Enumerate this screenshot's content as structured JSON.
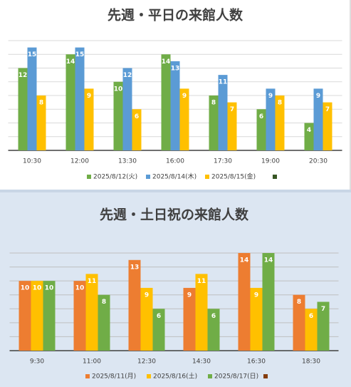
{
  "chart_data": [
    {
      "type": "bar",
      "title": "先週・平日の来館人数",
      "categories": [
        "10:30",
        "12:00",
        "13:30",
        "16:00",
        "17:30",
        "19:00",
        "20:30"
      ],
      "series": [
        {
          "name": "2025/8/12(火)",
          "color": "#70ad47",
          "values": [
            12,
            14,
            10,
            14,
            8,
            6,
            4
          ]
        },
        {
          "name": "2025/8/14(木)",
          "color": "#5b9bd5",
          "values": [
            15,
            15,
            12,
            13,
            11,
            9,
            9
          ]
        },
        {
          "name": "2025/8/15(金)",
          "color": "#ffc000",
          "values": [
            8,
            9,
            6,
            9,
            7,
            8,
            7
          ]
        }
      ],
      "ylim": [
        0,
        16
      ],
      "yticks": [
        0,
        2,
        4,
        6,
        8,
        10,
        12,
        14,
        16
      ],
      "grid": true
    },
    {
      "type": "bar",
      "title": "先週・土日祝の来館人数",
      "categories": [
        "9:30",
        "11:00",
        "12:30",
        "14:30",
        "16:30",
        "18:30"
      ],
      "series": [
        {
          "name": "2025/8/11(月)",
          "color": "#ed7d31",
          "values": [
            10,
            10,
            13,
            9,
            14,
            8
          ]
        },
        {
          "name": "2025/8/16(土)",
          "color": "#ffc000",
          "values": [
            10,
            11,
            9,
            11,
            9,
            6
          ]
        },
        {
          "name": "2025/8/17(日)",
          "color": "#70ad47",
          "values": [
            10,
            8,
            6,
            6,
            14,
            7
          ]
        }
      ],
      "ylim": [
        0,
        14
      ],
      "yticks": [
        0,
        2,
        4,
        6,
        8,
        10,
        12,
        14
      ],
      "grid": true
    }
  ]
}
